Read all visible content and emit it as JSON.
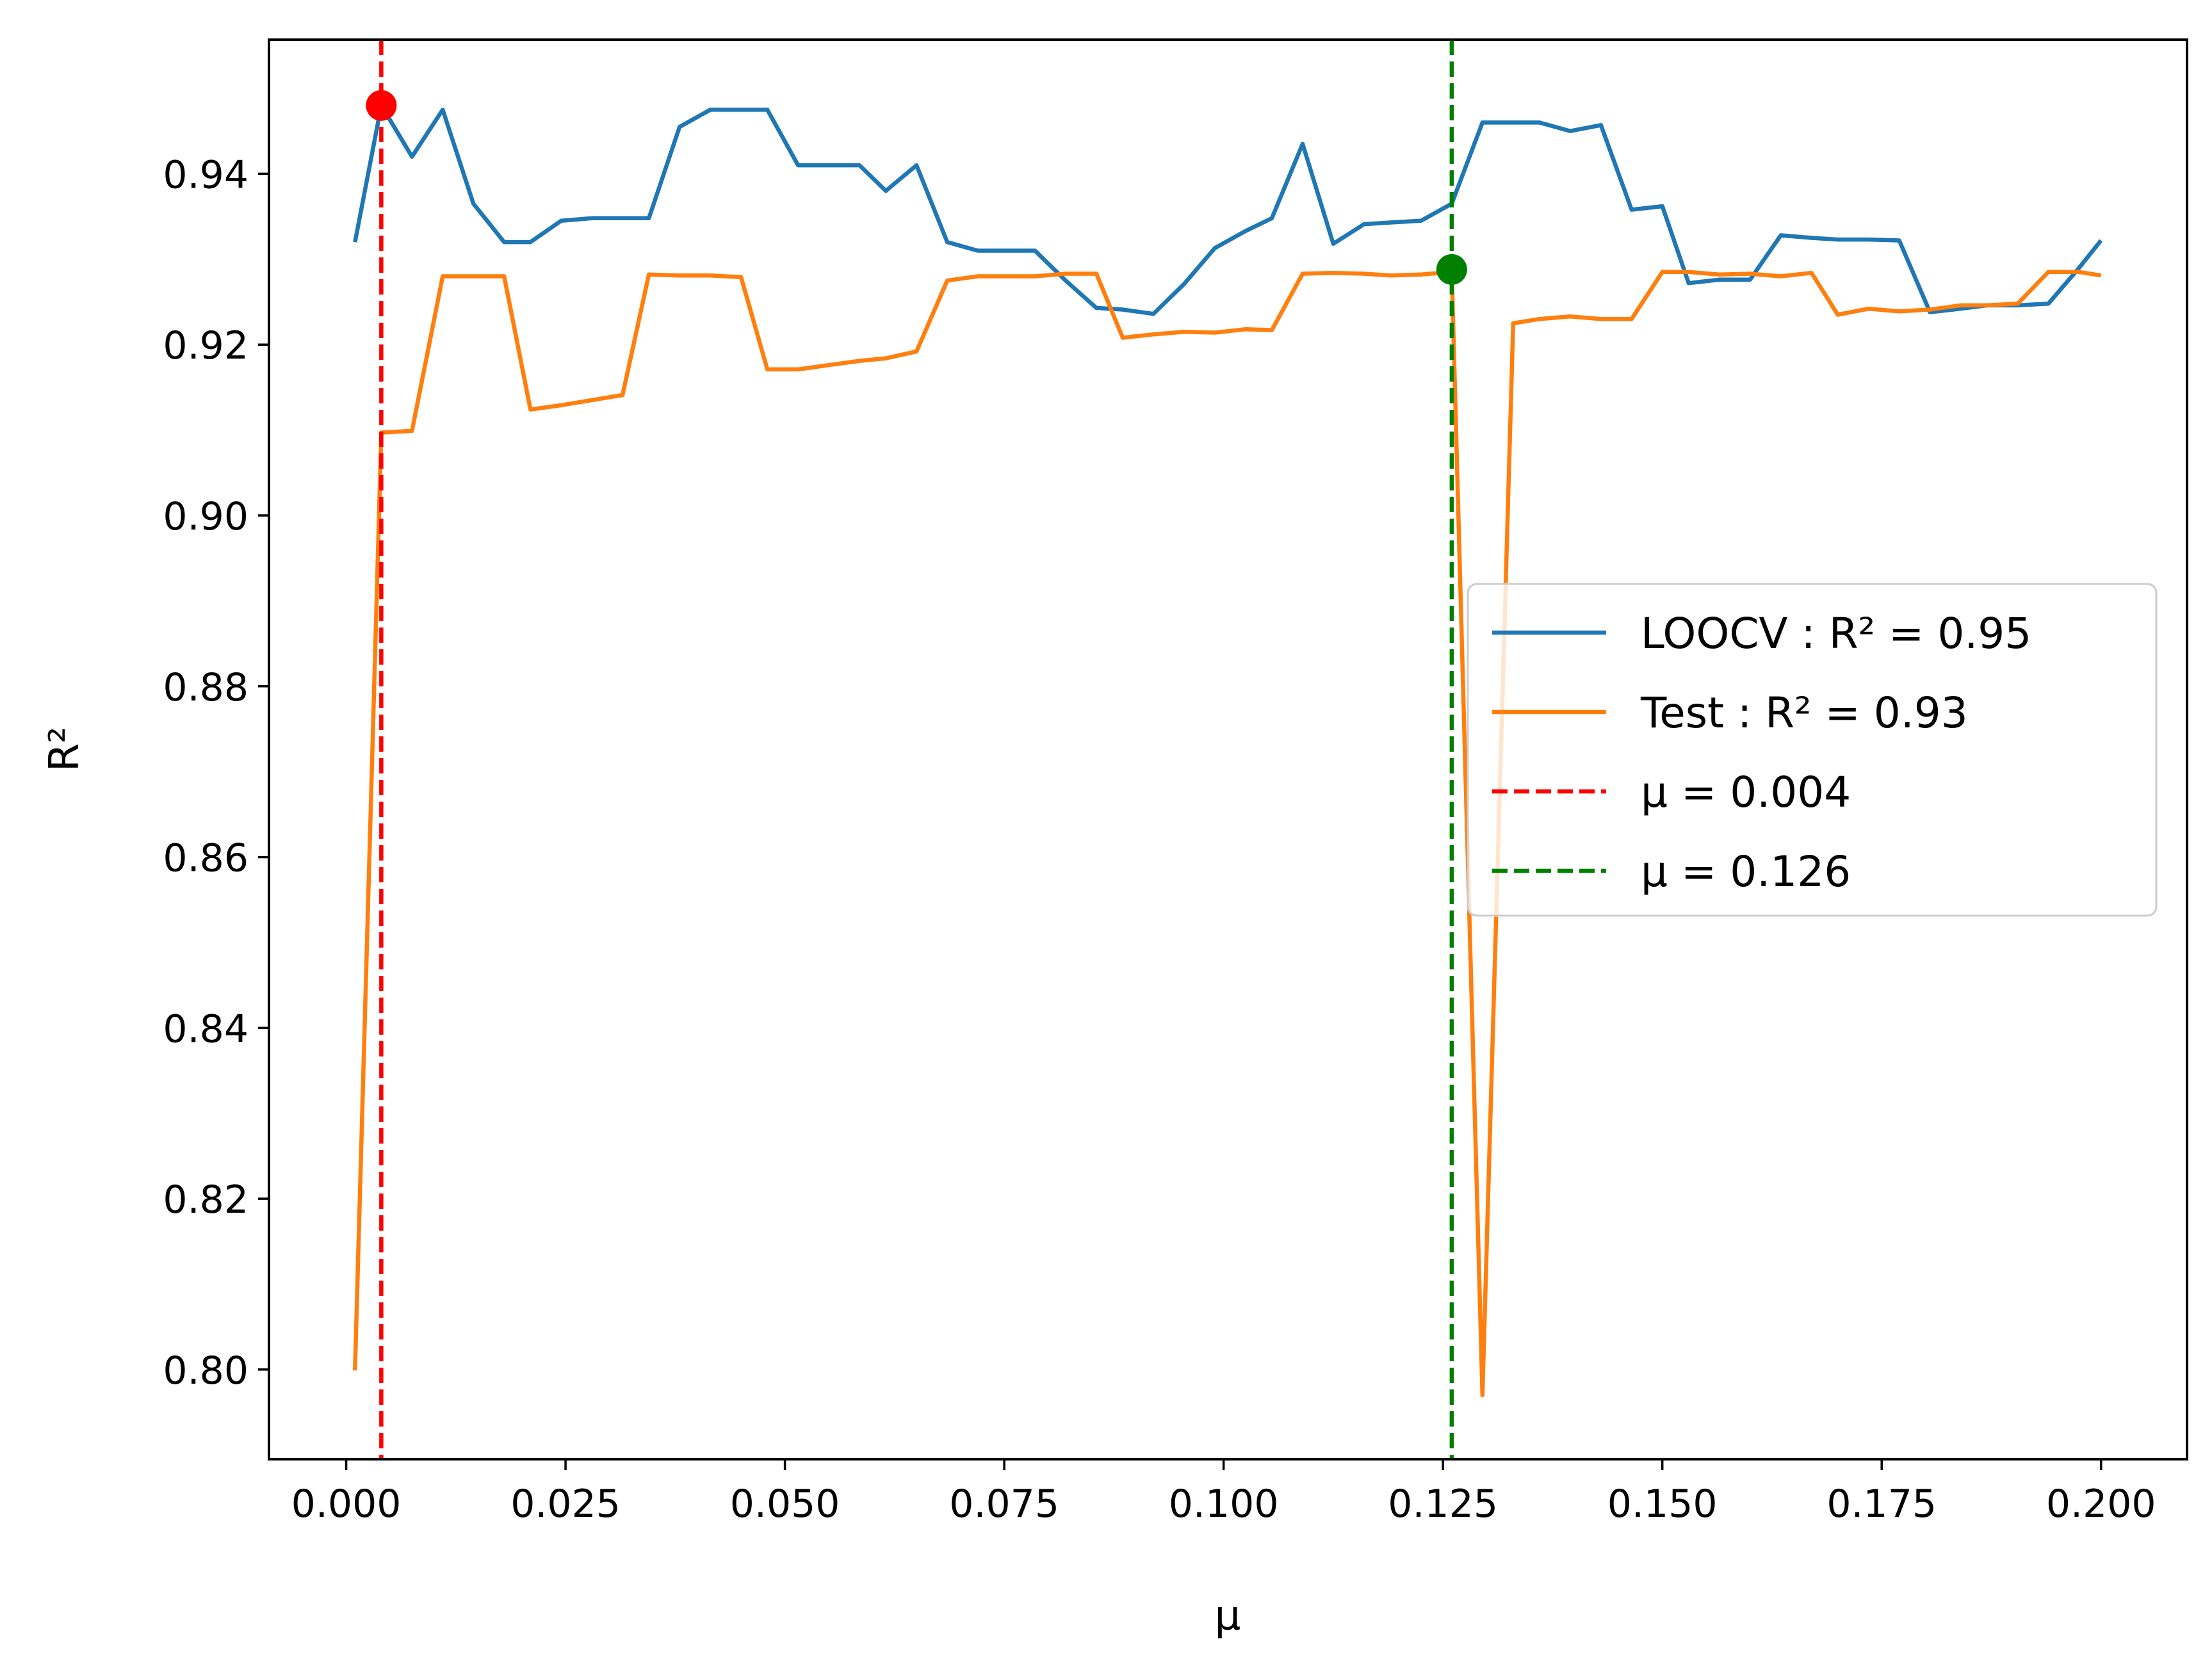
{
  "chart_data": {
    "type": "line",
    "title": "",
    "xlabel": "μ",
    "ylabel": "R²",
    "xlim": [
      -0.0088,
      0.2098
    ],
    "ylim": [
      0.7895,
      0.9557
    ],
    "xticks": [
      0.0,
      0.025,
      0.05,
      0.075,
      0.1,
      0.125,
      0.15,
      0.175,
      0.2
    ],
    "xtick_labels": [
      "0.000",
      "0.025",
      "0.050",
      "0.075",
      "0.100",
      "0.125",
      "0.150",
      "0.175",
      "0.200"
    ],
    "yticks": [
      0.8,
      0.82,
      0.84,
      0.86,
      0.88,
      0.9,
      0.92,
      0.94
    ],
    "ytick_labels": [
      "0.80",
      "0.82",
      "0.84",
      "0.86",
      "0.88",
      "0.90",
      "0.92",
      "0.94"
    ],
    "grid": false,
    "legend_position": "center-right",
    "x": [
      0.001,
      0.004,
      0.0075,
      0.011,
      0.0145,
      0.018,
      0.021,
      0.0245,
      0.028,
      0.0315,
      0.0345,
      0.038,
      0.0415,
      0.045,
      0.048,
      0.0515,
      0.055,
      0.0585,
      0.0615,
      0.065,
      0.0685,
      0.072,
      0.075,
      0.0785,
      0.082,
      0.0855,
      0.0885,
      0.092,
      0.0955,
      0.099,
      0.1025,
      0.1055,
      0.109,
      0.1125,
      0.116,
      0.119,
      0.1225,
      0.126,
      0.1295,
      0.133,
      0.136,
      0.1395,
      0.143,
      0.1465,
      0.15,
      0.153,
      0.1565,
      0.16,
      0.1635,
      0.167,
      0.17,
      0.1735,
      0.177,
      0.1805,
      0.184,
      0.187,
      0.1905,
      0.194,
      0.1975,
      0.2
    ],
    "series": [
      {
        "name": "LOOCV : R² = 0.95",
        "color": "#1f77b4",
        "values": [
          0.932,
          0.948,
          0.942,
          0.9475,
          0.9365,
          0.932,
          0.932,
          0.9345,
          0.9348,
          0.9348,
          0.9348,
          0.9455,
          0.9475,
          0.9475,
          0.9475,
          0.941,
          0.941,
          0.941,
          0.938,
          0.941,
          0.932,
          0.931,
          0.931,
          0.931,
          0.9275,
          0.9243,
          0.9241,
          0.9236,
          0.9271,
          0.9313,
          0.9333,
          0.9348,
          0.9435,
          0.9318,
          0.9341,
          0.9343,
          0.9345,
          0.9365,
          0.946,
          0.946,
          0.946,
          0.945,
          0.9457,
          0.9358,
          0.9362,
          0.9272,
          0.9276,
          0.9276,
          0.9328,
          0.9325,
          0.9323,
          0.9323,
          0.9322,
          0.9238,
          0.9242,
          0.9246,
          0.9246,
          0.9248,
          0.929,
          0.9322
        ]
      },
      {
        "name": "Test : R² = 0.93",
        "color": "#ff7f0e",
        "values": [
          0.7999,
          0.9097,
          0.9099,
          0.928,
          0.928,
          0.928,
          0.9124,
          0.9129,
          0.9135,
          0.9141,
          0.9282,
          0.9281,
          0.9281,
          0.9279,
          0.9171,
          0.9171,
          0.9176,
          0.9181,
          0.9184,
          0.9192,
          0.9275,
          0.928,
          0.928,
          0.928,
          0.9283,
          0.9283,
          0.9208,
          0.9212,
          0.9215,
          0.9214,
          0.9218,
          0.9217,
          0.9283,
          0.9284,
          0.9283,
          0.9281,
          0.9282,
          0.9285,
          0.797,
          0.9225,
          0.923,
          0.9233,
          0.923,
          0.923,
          0.9285,
          0.9285,
          0.9282,
          0.9283,
          0.928,
          0.9284,
          0.9235,
          0.9242,
          0.9239,
          0.9241,
          0.9246,
          0.9246,
          0.9248,
          0.9285,
          0.9285,
          0.9281
        ]
      }
    ],
    "vlines": [
      {
        "label": "μ = 0.004",
        "x": 0.004,
        "color": "#ff0000",
        "style": "dashed"
      },
      {
        "label": "μ = 0.126",
        "x": 0.126,
        "color": "#008000",
        "style": "dashed"
      }
    ],
    "markers": [
      {
        "x": 0.004,
        "y": 0.948,
        "color": "#ff0000"
      },
      {
        "x": 0.126,
        "y": 0.9288,
        "color": "#008000"
      }
    ]
  }
}
